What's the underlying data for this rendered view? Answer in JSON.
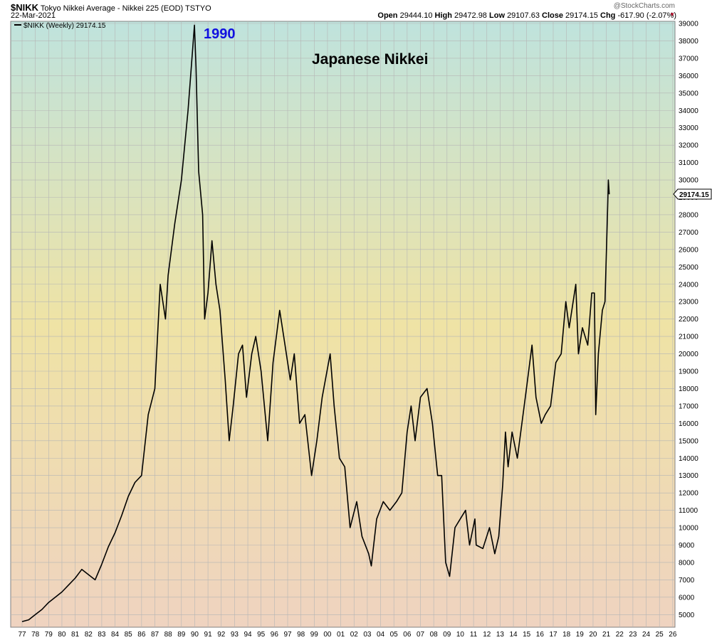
{
  "header": {
    "symbol": "$NIKK",
    "description": "Tokyo Nikkei Average - Nikkei 225 (EOD) TSTYO",
    "date": "22-Mar-2021",
    "open_label": "Open",
    "open": "29444.10",
    "high_label": "High",
    "high": "29472.98",
    "low_label": "Low",
    "low": "29107.63",
    "close_label": "Close",
    "close": "29174.15",
    "chg_label": "Chg",
    "chg": "-617.90 (-2.07%)",
    "credit": "@StockCharts.com"
  },
  "colors": {
    "line": "#000000",
    "bg_top": "#bfe3dd",
    "bg_mid": "#efe3a5",
    "bg_bottom": "#efd3c0",
    "grid": "#b5b5b5",
    "accent": "#1010e0"
  },
  "chart_data": {
    "type": "line",
    "legend": "$NIKK (Weekly) 29174.15",
    "last_value_label": "29174.15",
    "annotations": {
      "year_label": "1990",
      "title": "Japanese Nikkei"
    },
    "ylim": [
      4300,
      39000
    ],
    "y_ticks": [
      5000,
      6000,
      7000,
      8000,
      9000,
      10000,
      11000,
      12000,
      13000,
      14000,
      15000,
      16000,
      17000,
      18000,
      19000,
      20000,
      21000,
      22000,
      23000,
      24000,
      25000,
      26000,
      27000,
      28000,
      29000,
      30000,
      31000,
      32000,
      33000,
      34000,
      35000,
      36000,
      37000,
      38000,
      39000
    ],
    "x_ticks": [
      "77",
      "78",
      "79",
      "80",
      "81",
      "82",
      "83",
      "84",
      "85",
      "86",
      "87",
      "88",
      "89",
      "90",
      "91",
      "92",
      "93",
      "94",
      "95",
      "96",
      "97",
      "98",
      "99",
      "00",
      "01",
      "02",
      "03",
      "04",
      "05",
      "06",
      "07",
      "08",
      "09",
      "10",
      "11",
      "12",
      "13",
      "14",
      "15",
      "16",
      "17",
      "18",
      "19",
      "20",
      "21",
      "22",
      "23",
      "24",
      "25",
      "26"
    ],
    "series": [
      {
        "values": [
          [
            1977.0,
            4600
          ],
          [
            1977.5,
            4700
          ],
          [
            1978.0,
            5000
          ],
          [
            1978.5,
            5300
          ],
          [
            1979.0,
            5700
          ],
          [
            1979.5,
            6000
          ],
          [
            1980.0,
            6300
          ],
          [
            1980.5,
            6700
          ],
          [
            1981.0,
            7100
          ],
          [
            1981.5,
            7600
          ],
          [
            1982.0,
            7300
          ],
          [
            1982.5,
            7000
          ],
          [
            1983.0,
            7900
          ],
          [
            1983.5,
            8900
          ],
          [
            1984.0,
            9700
          ],
          [
            1984.5,
            10700
          ],
          [
            1985.0,
            11800
          ],
          [
            1985.5,
            12600
          ],
          [
            1986.0,
            13000
          ],
          [
            1986.5,
            16500
          ],
          [
            1987.0,
            18000
          ],
          [
            1987.4,
            24000
          ],
          [
            1987.8,
            22000
          ],
          [
            1988.0,
            24500
          ],
          [
            1988.5,
            27500
          ],
          [
            1989.0,
            30000
          ],
          [
            1989.5,
            34000
          ],
          [
            1989.98,
            38900
          ],
          [
            1990.1,
            36500
          ],
          [
            1990.3,
            30500
          ],
          [
            1990.6,
            28000
          ],
          [
            1990.75,
            22000
          ],
          [
            1991.0,
            23500
          ],
          [
            1991.3,
            26500
          ],
          [
            1991.6,
            24000
          ],
          [
            1991.9,
            22500
          ],
          [
            1992.3,
            18500
          ],
          [
            1992.6,
            15000
          ],
          [
            1992.9,
            17000
          ],
          [
            1993.3,
            20000
          ],
          [
            1993.6,
            20500
          ],
          [
            1993.9,
            17500
          ],
          [
            1994.3,
            20000
          ],
          [
            1994.6,
            21000
          ],
          [
            1995.0,
            19000
          ],
          [
            1995.5,
            15000
          ],
          [
            1995.9,
            19500
          ],
          [
            1996.4,
            22500
          ],
          [
            1996.8,
            20500
          ],
          [
            1997.2,
            18500
          ],
          [
            1997.5,
            20000
          ],
          [
            1997.9,
            16000
          ],
          [
            1998.3,
            16500
          ],
          [
            1998.8,
            13000
          ],
          [
            1999.2,
            15000
          ],
          [
            1999.6,
            17500
          ],
          [
            2000.2,
            20000
          ],
          [
            2000.5,
            17000
          ],
          [
            2000.9,
            14000
          ],
          [
            2001.3,
            13500
          ],
          [
            2001.7,
            10000
          ],
          [
            2002.2,
            11500
          ],
          [
            2002.6,
            9500
          ],
          [
            2003.1,
            8500
          ],
          [
            2003.3,
            7800
          ],
          [
            2003.7,
            10500
          ],
          [
            2004.2,
            11500
          ],
          [
            2004.7,
            11000
          ],
          [
            2005.2,
            11500
          ],
          [
            2005.6,
            12000
          ],
          [
            2006.0,
            15500
          ],
          [
            2006.3,
            17000
          ],
          [
            2006.6,
            15000
          ],
          [
            2007.0,
            17500
          ],
          [
            2007.5,
            18000
          ],
          [
            2007.9,
            16000
          ],
          [
            2008.3,
            13000
          ],
          [
            2008.6,
            13000
          ],
          [
            2008.9,
            8000
          ],
          [
            2009.2,
            7200
          ],
          [
            2009.6,
            10000
          ],
          [
            2010.0,
            10500
          ],
          [
            2010.4,
            11000
          ],
          [
            2010.7,
            9000
          ],
          [
            2011.1,
            10500
          ],
          [
            2011.2,
            9000
          ],
          [
            2011.7,
            8800
          ],
          [
            2012.2,
            10000
          ],
          [
            2012.6,
            8500
          ],
          [
            2012.9,
            9500
          ],
          [
            2013.2,
            12500
          ],
          [
            2013.4,
            15500
          ],
          [
            2013.6,
            13500
          ],
          [
            2013.9,
            15500
          ],
          [
            2014.3,
            14000
          ],
          [
            2014.9,
            17500
          ],
          [
            2015.4,
            20500
          ],
          [
            2015.7,
            17500
          ],
          [
            2016.1,
            16000
          ],
          [
            2016.4,
            16500
          ],
          [
            2016.8,
            17000
          ],
          [
            2017.2,
            19500
          ],
          [
            2017.6,
            20000
          ],
          [
            2017.95,
            23000
          ],
          [
            2018.2,
            21500
          ],
          [
            2018.7,
            24000
          ],
          [
            2018.9,
            20000
          ],
          [
            2019.2,
            21500
          ],
          [
            2019.6,
            20500
          ],
          [
            2019.9,
            23500
          ],
          [
            2020.1,
            23500
          ],
          [
            2020.2,
            16500
          ],
          [
            2020.4,
            20000
          ],
          [
            2020.7,
            22500
          ],
          [
            2020.9,
            23000
          ],
          [
            2021.1,
            28500
          ],
          [
            2021.15,
            30000
          ],
          [
            2021.22,
            29174
          ]
        ]
      }
    ]
  }
}
